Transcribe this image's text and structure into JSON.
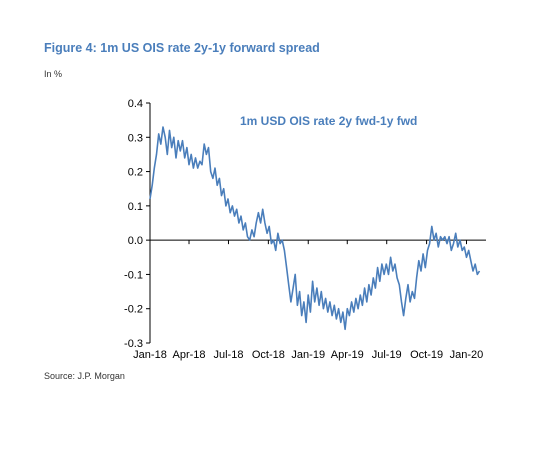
{
  "figure": {
    "title": "Figure 4: 1m US OIS rate 2y-1y forward spread",
    "unit": "In %",
    "source": "Source: J.P. Morgan"
  },
  "chart_data": {
    "type": "line",
    "title": "Figure 4: 1m US OIS rate 2y-1y forward spread",
    "ylabel": "In %",
    "ylim": [
      -0.3,
      0.4
    ],
    "yticks": [
      0.4,
      0.3,
      0.2,
      0.1,
      0.0,
      -0.1,
      -0.2,
      -0.3
    ],
    "ytick_labels": [
      "0.4",
      "0.3",
      "0.2",
      "0.1",
      "0.0",
      "-0.1",
      "-0.2",
      "-0.3"
    ],
    "xlim": [
      "2018-01-01",
      "2020-02-15"
    ],
    "xticks": [
      "2018-01-01",
      "2018-04-01",
      "2018-07-01",
      "2018-10-01",
      "2019-01-01",
      "2019-04-01",
      "2019-07-01",
      "2019-10-01",
      "2020-01-01"
    ],
    "xtick_labels": [
      "Jan-18",
      "Apr-18",
      "Jul-18",
      "Oct-18",
      "Jan-19",
      "Apr-19",
      "Jul-19",
      "Oct-19",
      "Jan-20"
    ],
    "grid": false,
    "series_color": "#4a7ebb",
    "series": [
      {
        "name": "1m USD OIS rate 2y fwd-1y fwd",
        "points": [
          [
            "2018-01-01",
            0.12
          ],
          [
            "2018-01-06",
            0.16
          ],
          [
            "2018-01-11",
            0.21
          ],
          [
            "2018-01-16",
            0.25
          ],
          [
            "2018-01-21",
            0.31
          ],
          [
            "2018-01-26",
            0.28
          ],
          [
            "2018-01-31",
            0.33
          ],
          [
            "2018-02-05",
            0.3
          ],
          [
            "2018-02-10",
            0.25
          ],
          [
            "2018-02-15",
            0.32
          ],
          [
            "2018-02-20",
            0.27
          ],
          [
            "2018-02-25",
            0.3
          ],
          [
            "2018-03-02",
            0.24
          ],
          [
            "2018-03-07",
            0.29
          ],
          [
            "2018-03-12",
            0.26
          ],
          [
            "2018-03-17",
            0.29
          ],
          [
            "2018-03-22",
            0.24
          ],
          [
            "2018-03-27",
            0.27
          ],
          [
            "2018-04-01",
            0.22
          ],
          [
            "2018-04-06",
            0.25
          ],
          [
            "2018-04-11",
            0.21
          ],
          [
            "2018-04-16",
            0.24
          ],
          [
            "2018-04-21",
            0.21
          ],
          [
            "2018-04-26",
            0.23
          ],
          [
            "2018-05-01",
            0.22
          ],
          [
            "2018-05-06",
            0.28
          ],
          [
            "2018-05-11",
            0.25
          ],
          [
            "2018-05-16",
            0.27
          ],
          [
            "2018-05-21",
            0.2
          ],
          [
            "2018-05-26",
            0.18
          ],
          [
            "2018-05-31",
            0.21
          ],
          [
            "2018-06-05",
            0.16
          ],
          [
            "2018-06-10",
            0.18
          ],
          [
            "2018-06-15",
            0.13
          ],
          [
            "2018-06-20",
            0.15
          ],
          [
            "2018-06-25",
            0.1
          ],
          [
            "2018-06-30",
            0.12
          ],
          [
            "2018-07-05",
            0.08
          ],
          [
            "2018-07-10",
            0.1
          ],
          [
            "2018-07-15",
            0.07
          ],
          [
            "2018-07-20",
            0.09
          ],
          [
            "2018-07-25",
            0.05
          ],
          [
            "2018-07-30",
            0.07
          ],
          [
            "2018-08-04",
            0.03
          ],
          [
            "2018-08-09",
            0.05
          ],
          [
            "2018-08-14",
            0.01
          ],
          [
            "2018-08-19",
            0.0
          ],
          [
            "2018-08-24",
            0.03
          ],
          [
            "2018-08-29",
            0.01
          ],
          [
            "2018-09-03",
            0.05
          ],
          [
            "2018-09-08",
            0.08
          ],
          [
            "2018-09-13",
            0.05
          ],
          [
            "2018-09-18",
            0.09
          ],
          [
            "2018-09-23",
            0.05
          ],
          [
            "2018-09-28",
            0.02
          ],
          [
            "2018-10-03",
            0.04
          ],
          [
            "2018-10-08",
            -0.01
          ],
          [
            "2018-10-13",
            0.0
          ],
          [
            "2018-10-18",
            -0.03
          ],
          [
            "2018-10-23",
            0.02
          ],
          [
            "2018-10-28",
            -0.01
          ],
          [
            "2018-11-02",
            0.0
          ],
          [
            "2018-11-07",
            -0.03
          ],
          [
            "2018-11-12",
            -0.08
          ],
          [
            "2018-11-17",
            -0.13
          ],
          [
            "2018-11-22",
            -0.18
          ],
          [
            "2018-11-27",
            -0.14
          ],
          [
            "2018-12-02",
            -0.1
          ],
          [
            "2018-12-07",
            -0.19
          ],
          [
            "2018-12-12",
            -0.15
          ],
          [
            "2018-12-17",
            -0.22
          ],
          [
            "2018-12-22",
            -0.18
          ],
          [
            "2018-12-27",
            -0.24
          ],
          [
            "2019-01-01",
            -0.16
          ],
          [
            "2019-01-06",
            -0.21
          ],
          [
            "2019-01-11",
            -0.12
          ],
          [
            "2019-01-16",
            -0.18
          ],
          [
            "2019-01-21",
            -0.14
          ],
          [
            "2019-01-26",
            -0.19
          ],
          [
            "2019-01-31",
            -0.15
          ],
          [
            "2019-02-05",
            -0.2
          ],
          [
            "2019-02-10",
            -0.17
          ],
          [
            "2019-02-15",
            -0.21
          ],
          [
            "2019-02-20",
            -0.18
          ],
          [
            "2019-02-25",
            -0.22
          ],
          [
            "2019-03-02",
            -0.19
          ],
          [
            "2019-03-07",
            -0.23
          ],
          [
            "2019-03-12",
            -0.2
          ],
          [
            "2019-03-17",
            -0.24
          ],
          [
            "2019-03-22",
            -0.21
          ],
          [
            "2019-03-27",
            -0.26
          ],
          [
            "2019-04-01",
            -0.2
          ],
          [
            "2019-04-06",
            -0.22
          ],
          [
            "2019-04-11",
            -0.18
          ],
          [
            "2019-04-16",
            -0.21
          ],
          [
            "2019-04-21",
            -0.17
          ],
          [
            "2019-04-26",
            -0.2
          ],
          [
            "2019-05-01",
            -0.16
          ],
          [
            "2019-05-06",
            -0.19
          ],
          [
            "2019-05-11",
            -0.14
          ],
          [
            "2019-05-16",
            -0.18
          ],
          [
            "2019-05-21",
            -0.13
          ],
          [
            "2019-05-26",
            -0.16
          ],
          [
            "2019-05-31",
            -0.11
          ],
          [
            "2019-06-05",
            -0.14
          ],
          [
            "2019-06-10",
            -0.08
          ],
          [
            "2019-06-15",
            -0.12
          ],
          [
            "2019-06-20",
            -0.07
          ],
          [
            "2019-06-25",
            -0.1
          ],
          [
            "2019-06-30",
            -0.07
          ],
          [
            "2019-07-05",
            -0.1
          ],
          [
            "2019-07-10",
            -0.05
          ],
          [
            "2019-07-15",
            -0.09
          ],
          [
            "2019-07-20",
            -0.07
          ],
          [
            "2019-07-25",
            -0.11
          ],
          [
            "2019-07-30",
            -0.13
          ],
          [
            "2019-08-04",
            -0.18
          ],
          [
            "2019-08-09",
            -0.22
          ],
          [
            "2019-08-14",
            -0.17
          ],
          [
            "2019-08-19",
            -0.13
          ],
          [
            "2019-08-24",
            -0.18
          ],
          [
            "2019-08-29",
            -0.15
          ],
          [
            "2019-09-03",
            -0.17
          ],
          [
            "2019-09-08",
            -0.11
          ],
          [
            "2019-09-13",
            -0.06
          ],
          [
            "2019-09-18",
            -0.09
          ],
          [
            "2019-09-23",
            -0.04
          ],
          [
            "2019-09-28",
            -0.08
          ],
          [
            "2019-10-03",
            -0.03
          ],
          [
            "2019-10-08",
            -0.01
          ],
          [
            "2019-10-13",
            0.04
          ],
          [
            "2019-10-18",
            0.0
          ],
          [
            "2019-10-23",
            0.02
          ],
          [
            "2019-10-28",
            -0.02
          ],
          [
            "2019-11-02",
            0.01
          ],
          [
            "2019-11-07",
            0.0
          ],
          [
            "2019-11-12",
            0.01
          ],
          [
            "2019-11-17",
            -0.01
          ],
          [
            "2019-11-22",
            0.01
          ],
          [
            "2019-11-27",
            -0.03
          ],
          [
            "2019-12-02",
            -0.01
          ],
          [
            "2019-12-07",
            0.02
          ],
          [
            "2019-12-12",
            -0.02
          ],
          [
            "2019-12-17",
            0.0
          ],
          [
            "2019-12-22",
            -0.03
          ],
          [
            "2019-12-27",
            -0.02
          ],
          [
            "2020-01-01",
            -0.05
          ],
          [
            "2020-01-06",
            -0.03
          ],
          [
            "2020-01-11",
            -0.06
          ],
          [
            "2020-01-16",
            -0.09
          ],
          [
            "2020-01-21",
            -0.07
          ],
          [
            "2020-01-26",
            -0.1
          ],
          [
            "2020-01-31",
            -0.09
          ]
        ]
      }
    ]
  }
}
